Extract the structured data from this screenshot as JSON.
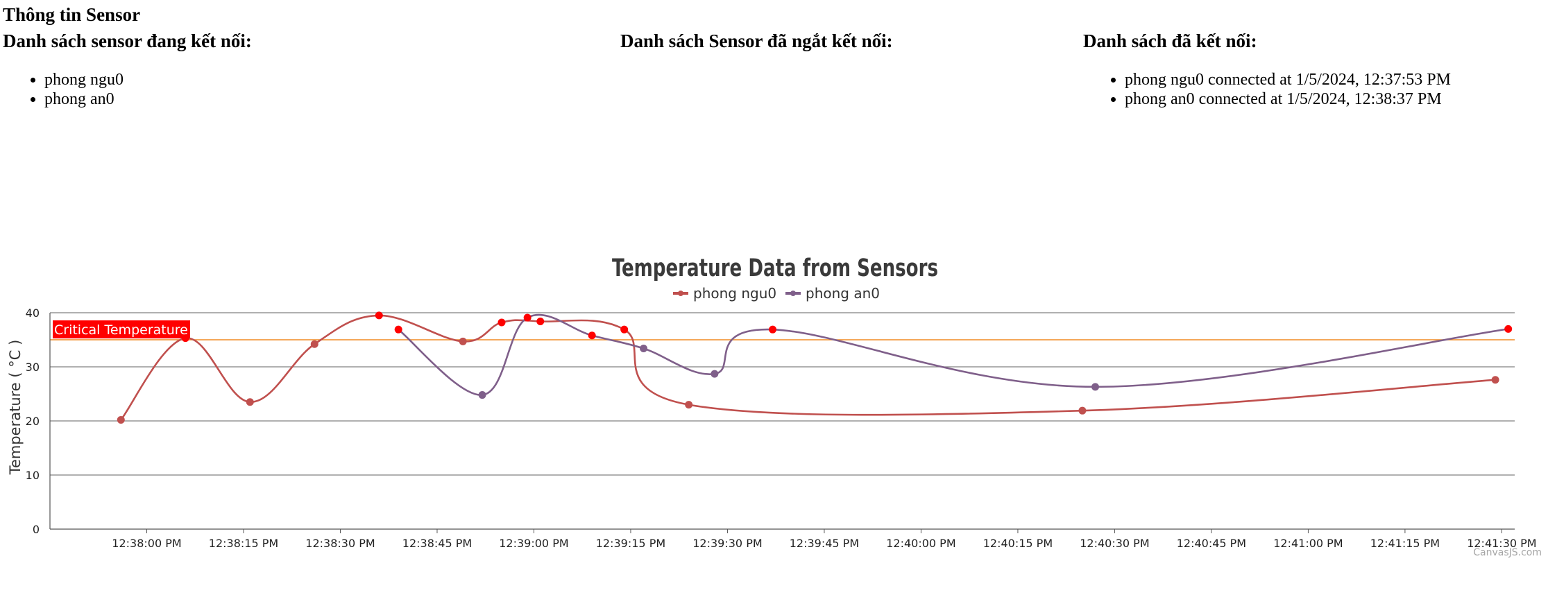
{
  "page": {
    "title": "Thông tin Sensor",
    "connected": {
      "heading": "Danh sách sensor đang kết nối:",
      "items": [
        "phong ngu0",
        "phong an0"
      ]
    },
    "disconnected": {
      "heading": "Danh sách Sensor đã ngắt kết nối:",
      "items": []
    },
    "history": {
      "heading": "Danh sách đã kết nối:",
      "items": [
        "phong ngu0 connected at 1/5/2024, 12:37:53 PM",
        "phong an0 connected at 1/5/2024, 12:38:37 PM"
      ]
    }
  },
  "chart_data": {
    "type": "line",
    "title": "Temperature Data from Sensors",
    "ylabel": "Temperature ( °C )",
    "xlabel": "",
    "credit": "CanvasJS.com",
    "ylim": [
      0,
      40
    ],
    "yticks": [
      0,
      10,
      20,
      30,
      40
    ],
    "grid": true,
    "legend_position": "top-center",
    "xaxis": {
      "start": "12:37:53",
      "end": "12:41:31",
      "ticks": [
        "12:38:00 PM",
        "12:38:15 PM",
        "12:38:30 PM",
        "12:38:45 PM",
        "12:39:00 PM",
        "12:39:15 PM",
        "12:39:30 PM",
        "12:39:45 PM",
        "12:40:00 PM",
        "12:40:15 PM",
        "12:40:30 PM",
        "12:40:45 PM",
        "12:41:00 PM",
        "12:41:15 PM",
        "12:41:30 PM"
      ]
    },
    "striplines": [
      {
        "value": 35,
        "label": "Critical Temperature",
        "color": "#f08a24",
        "label_bg": "#ff0000"
      }
    ],
    "alert_threshold": 35,
    "alert_color": "#ff0000",
    "series": [
      {
        "name": "phong ngu0",
        "color": "#c0504e",
        "points": [
          [
            "12:37:56",
            20.2
          ],
          [
            "12:38:06",
            35.3
          ],
          [
            "12:38:16",
            23.5
          ],
          [
            "12:38:26",
            34.2
          ],
          [
            "12:38:36",
            39.5
          ],
          [
            "12:38:49",
            34.7
          ],
          [
            "12:38:55",
            38.2
          ],
          [
            "12:39:01",
            38.4
          ],
          [
            "12:39:14",
            36.9
          ],
          [
            "12:39:24",
            23.0
          ],
          [
            "12:40:25",
            21.9
          ],
          [
            "12:41:29",
            27.6
          ]
        ]
      },
      {
        "name": "phong an0",
        "color": "#7f5f8a",
        "points": [
          [
            "12:38:39",
            36.9
          ],
          [
            "12:38:52",
            24.8
          ],
          [
            "12:38:59",
            39.1
          ],
          [
            "12:39:09",
            35.8
          ],
          [
            "12:39:17",
            33.4
          ],
          [
            "12:39:28",
            28.7
          ],
          [
            "12:39:37",
            36.9
          ],
          [
            "12:40:27",
            26.3
          ],
          [
            "12:41:31",
            37.0
          ]
        ]
      }
    ]
  }
}
